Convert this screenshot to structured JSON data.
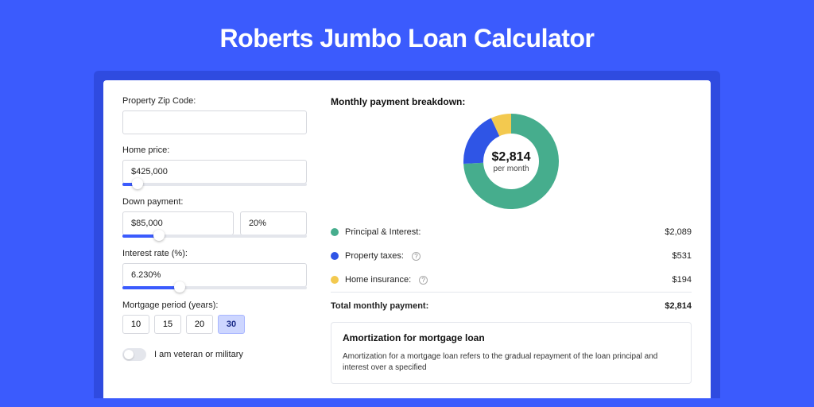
{
  "page": {
    "title": "Roberts Jumbo Loan Calculator",
    "background_color": "#3b5bfd",
    "shadow_color": "#2f4be0"
  },
  "form": {
    "zip": {
      "label": "Property Zip Code:",
      "value": ""
    },
    "home_price": {
      "label": "Home price:",
      "value": "$425,000",
      "slider_pct": 8
    },
    "down_payment": {
      "label": "Down payment:",
      "value": "$85,000",
      "pct_value": "20%",
      "slider_pct": 20
    },
    "interest_rate": {
      "label": "Interest rate (%):",
      "value": "6.230%",
      "slider_pct": 31
    },
    "period": {
      "label": "Mortgage period (years):",
      "options": [
        "10",
        "15",
        "20",
        "30"
      ],
      "selected": "30"
    },
    "veteran": {
      "label": "I am veteran or military",
      "on": false
    }
  },
  "breakdown": {
    "title": "Monthly payment breakdown:",
    "center_amount": "$2,814",
    "center_sub": "per month",
    "items": [
      {
        "label": "Principal & Interest:",
        "value": "$2,089",
        "color": "#46ad8d",
        "info": false
      },
      {
        "label": "Property taxes:",
        "value": "$531",
        "color": "#2f55e6",
        "info": true
      },
      {
        "label": "Home insurance:",
        "value": "$194",
        "color": "#f3c94f",
        "info": true
      }
    ],
    "total": {
      "label": "Total monthly payment:",
      "value": "$2,814"
    },
    "donut": {
      "segments": [
        {
          "color": "#46ad8d",
          "fraction": 0.742
        },
        {
          "color": "#2f55e6",
          "fraction": 0.189
        },
        {
          "color": "#f3c94f",
          "fraction": 0.069
        }
      ],
      "inner_radius": 35,
      "outer_radius": 60,
      "start_angle_deg": -90
    }
  },
  "amortization": {
    "title": "Amortization for mortgage loan",
    "text": "Amortization for a mortgage loan refers to the gradual repayment of the loan principal and interest over a specified"
  }
}
